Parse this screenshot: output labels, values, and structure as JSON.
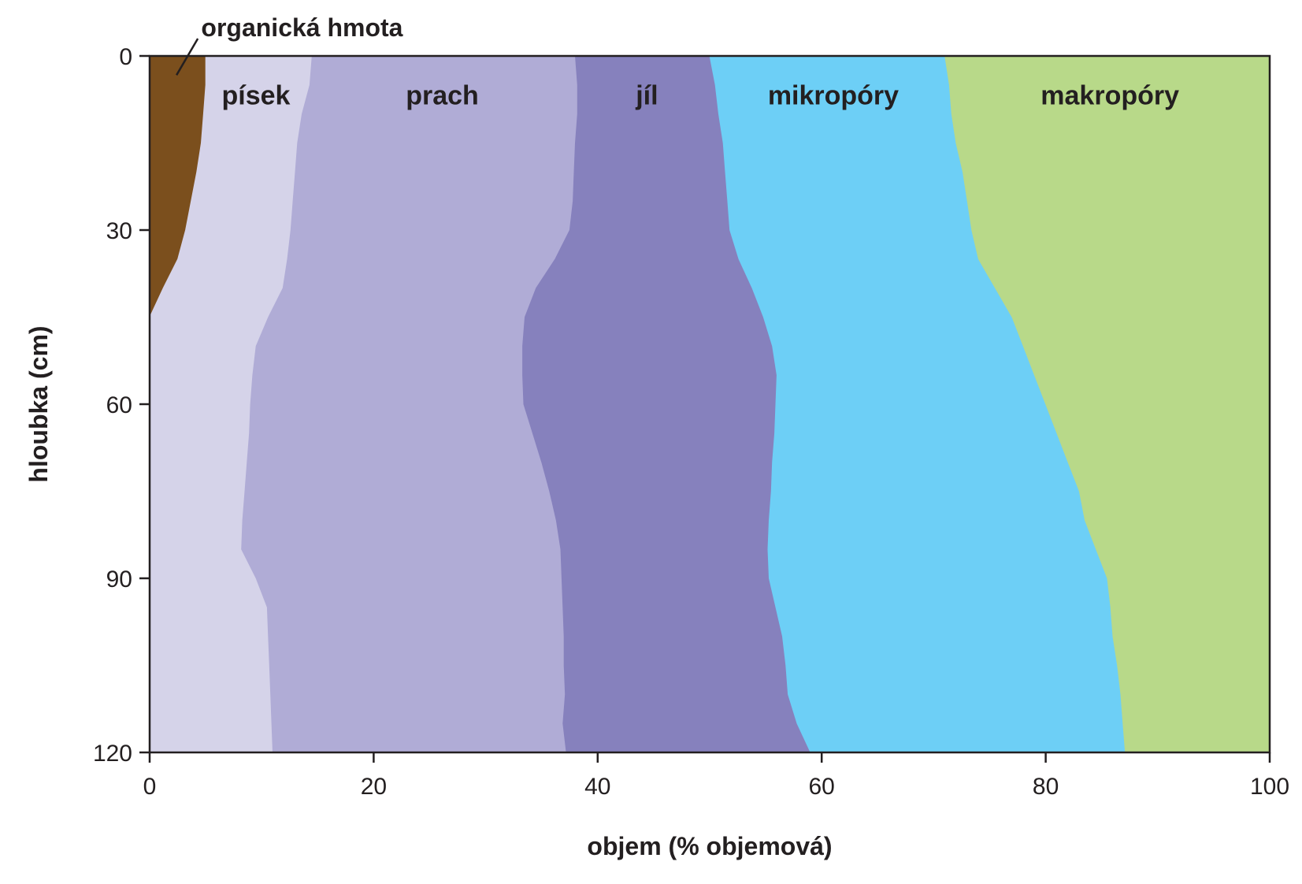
{
  "chart_data": {
    "type": "area",
    "orientation": "horizontal-stacked",
    "xlabel": "objem (% objemová)",
    "ylabel": "hloubka (cm)",
    "xlim": [
      0,
      100
    ],
    "ylim": [
      0,
      120
    ],
    "y_inverted": true,
    "x_ticks": [
      0,
      20,
      40,
      60,
      80,
      100
    ],
    "y_ticks": [
      0,
      30,
      60,
      90,
      120
    ],
    "grid": false,
    "legend": "none",
    "depth": [
      0,
      5,
      10,
      15,
      20,
      25,
      30,
      35,
      40,
      45,
      50,
      55,
      60,
      65,
      70,
      75,
      80,
      85,
      90,
      95,
      100,
      105,
      110,
      115,
      120
    ],
    "series": [
      {
        "name": "organická hmota",
        "color": "#7b4f1d",
        "cumulative_right_edge": [
          5,
          5,
          4.8,
          4.6,
          4.2,
          3.7,
          3.2,
          2.5,
          1.2,
          0,
          0,
          0,
          0,
          0,
          0,
          0,
          0,
          0,
          0,
          0,
          0,
          0,
          0,
          0,
          0
        ]
      },
      {
        "name": "písek",
        "color": "#d5d3e9",
        "cumulative_right_edge": [
          14.5,
          14.3,
          13.6,
          13.2,
          13,
          12.8,
          12.6,
          12.3,
          11.9,
          10.6,
          9.5,
          9.2,
          9,
          8.9,
          8.7,
          8.5,
          8.3,
          8.2,
          9.5,
          10.5,
          10.6,
          10.7,
          10.8,
          10.9,
          11
        ]
      },
      {
        "name": "prach",
        "color": "#b0acd6",
        "cumulative_right_edge": [
          38,
          38.2,
          38.2,
          38,
          37.9,
          37.8,
          37.5,
          36.2,
          34.5,
          33.5,
          33.3,
          33.3,
          33.4,
          34.2,
          35,
          35.7,
          36.3,
          36.7,
          36.8,
          36.9,
          37,
          37,
          37.1,
          36.9,
          37.2
        ]
      },
      {
        "name": "jíl",
        "color": "#8681bd",
        "cumulative_right_edge": [
          50,
          50.5,
          50.8,
          51.2,
          51.4,
          51.6,
          51.8,
          52.6,
          53.8,
          54.8,
          55.6,
          56,
          55.9,
          55.8,
          55.6,
          55.5,
          55.3,
          55.2,
          55.3,
          55.9,
          56.5,
          56.8,
          57,
          57.8,
          59
        ]
      },
      {
        "name": "mikropóry",
        "color": "#6dcff6",
        "cumulative_right_edge": [
          71,
          71.4,
          71.6,
          72,
          72.6,
          73,
          73.4,
          74,
          75.5,
          77,
          78,
          79,
          80,
          81,
          82,
          83,
          83.5,
          84.5,
          85.5,
          85.8,
          86,
          86.4,
          86.7,
          86.9,
          87.1
        ]
      },
      {
        "name": "makropóry",
        "color": "#b8d989",
        "cumulative_right_edge": [
          100,
          100,
          100,
          100,
          100,
          100,
          100,
          100,
          100,
          100,
          100,
          100,
          100,
          100,
          100,
          100,
          100,
          100,
          100,
          100,
          100,
          100,
          100,
          100,
          100
        ]
      }
    ],
    "band_labels": [
      "písek",
      "prach",
      "jíl",
      "mikropóry",
      "makropóry"
    ],
    "annotation": "organická hmota"
  }
}
